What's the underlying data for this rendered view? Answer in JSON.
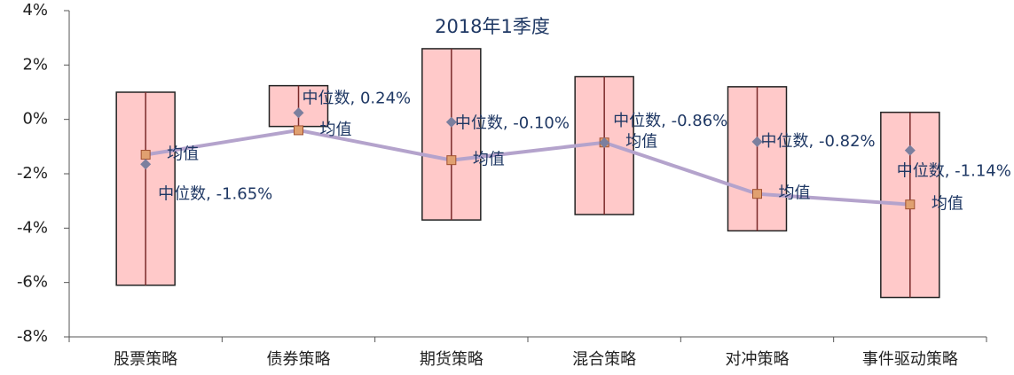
{
  "chart_data": {
    "type": "range",
    "title": "2018年1季度",
    "categories": [
      "股票策略",
      "债券策略",
      "期货策略",
      "混合策略",
      "对冲策略",
      "事件驱动策略"
    ],
    "high": [
      1.0,
      1.24,
      2.6,
      1.57,
      1.2,
      0.26
    ],
    "low": [
      -6.1,
      -0.26,
      -3.7,
      -3.5,
      -4.1,
      -6.55
    ],
    "median": {
      "name": "中位数",
      "color": "#7b7f9e",
      "values": [
        -1.65,
        0.24,
        -0.1,
        -0.86,
        -0.82,
        -1.14
      ],
      "value_labels": [
        "中位数, -1.65%",
        "中位数, 0.24%",
        "中位数, -0.10%",
        "中位数, -0.86%",
        "中位数, -0.82%",
        "中位数, -1.14%"
      ]
    },
    "mean": {
      "name": "均值",
      "color": "#b4a3cc",
      "values": [
        -1.3,
        -0.4,
        -1.5,
        -0.85,
        -2.74,
        -3.13
      ]
    },
    "box_color": "#ffc9c9",
    "ylim": [
      -8,
      4
    ],
    "yticks": [
      {
        "value": -8,
        "label": "-8%"
      },
      {
        "value": -6,
        "label": "-6%"
      },
      {
        "value": -4,
        "label": "-4%"
      },
      {
        "value": -2,
        "label": "-2%"
      },
      {
        "value": 0,
        "label": "0%"
      },
      {
        "value": 2,
        "label": "2%"
      },
      {
        "value": 4,
        "label": "4%"
      }
    ]
  }
}
